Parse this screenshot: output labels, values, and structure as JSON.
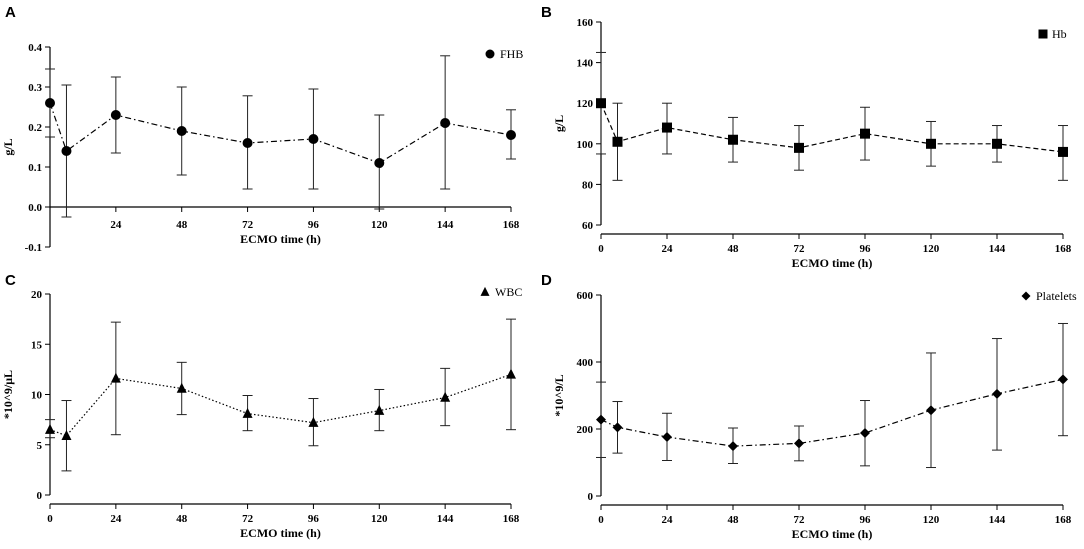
{
  "chart_data": [
    {
      "panel": "A",
      "type": "line",
      "title": "",
      "xlabel": "ECMO time (h)",
      "ylabel": "g/L",
      "legend": "FHB",
      "marker": "circle",
      "line_style": "dash-dot",
      "legend_position": "top-right",
      "xlim": [
        0,
        168
      ],
      "ylim": [
        -0.1,
        0.4
      ],
      "xticks": [
        "24",
        "48",
        "72",
        "96",
        "120",
        "144",
        "168"
      ],
      "yticks": [
        "-0.1",
        "0.0",
        "0.1",
        "0.2",
        "0.3",
        "0.4"
      ],
      "x": [
        0,
        6,
        24,
        48,
        72,
        96,
        120,
        144,
        168
      ],
      "y": [
        0.26,
        0.14,
        0.23,
        0.19,
        0.16,
        0.17,
        0.11,
        0.21,
        0.18
      ],
      "err_low": [
        0.175,
        -0.025,
        0.135,
        0.08,
        0.045,
        0.045,
        -0.005,
        0.045,
        0.12
      ],
      "err_high": [
        0.345,
        0.305,
        0.325,
        0.3,
        0.278,
        0.295,
        0.23,
        0.378,
        0.243
      ]
    },
    {
      "panel": "B",
      "type": "line",
      "title": "",
      "xlabel": "ECMO time (h)",
      "ylabel": "g/L",
      "legend": "Hb",
      "marker": "square",
      "line_style": "dashed",
      "legend_position": "top-right",
      "xlim": [
        0,
        168
      ],
      "ylim": [
        60,
        160
      ],
      "xticks": [
        "0",
        "24",
        "48",
        "72",
        "96",
        "120",
        "144",
        "168"
      ],
      "yticks": [
        "60",
        "80",
        "100",
        "120",
        "140",
        "160"
      ],
      "x": [
        0,
        6,
        24,
        48,
        72,
        96,
        120,
        144,
        168
      ],
      "y": [
        120,
        101,
        108,
        102,
        98,
        105,
        100,
        100,
        96
      ],
      "err_low": [
        95,
        82,
        95,
        91,
        87,
        92,
        89,
        91,
        82
      ],
      "err_high": [
        145,
        120,
        120,
        113,
        109,
        118,
        111,
        109,
        109
      ]
    },
    {
      "panel": "C",
      "type": "line",
      "title": "",
      "xlabel": "ECMO time (h)",
      "ylabel": "*10^9/μL",
      "legend": "WBC",
      "marker": "triangle",
      "line_style": "dotted",
      "legend_position": "top-right",
      "xlim": [
        0,
        168
      ],
      "ylim": [
        0,
        20
      ],
      "xticks": [
        "0",
        "24",
        "48",
        "72",
        "96",
        "120",
        "144",
        "168"
      ],
      "yticks": [
        "0",
        "5",
        "10",
        "15",
        "20"
      ],
      "x": [
        0,
        6,
        24,
        48,
        72,
        96,
        120,
        144,
        168
      ],
      "y": [
        6.5,
        5.9,
        11.6,
        10.6,
        8.1,
        7.2,
        8.4,
        9.7,
        12.0
      ],
      "err_low": [
        5.7,
        2.4,
        6.0,
        8.0,
        6.4,
        4.9,
        6.4,
        6.9,
        6.5
      ],
      "err_high": [
        7.5,
        9.4,
        17.2,
        13.2,
        9.9,
        9.6,
        10.5,
        12.6,
        17.5
      ]
    },
    {
      "panel": "D",
      "type": "line",
      "title": "",
      "xlabel": "ECMO time (h)",
      "ylabel": "*10^9/L",
      "legend": "Platelets",
      "marker": "diamond",
      "line_style": "dash-dot",
      "legend_position": "top-right",
      "xlim": [
        0,
        168
      ],
      "ylim": [
        0,
        600
      ],
      "xticks": [
        "0",
        "24",
        "48",
        "72",
        "96",
        "120",
        "144",
        "168"
      ],
      "yticks": [
        "0",
        "200",
        "400",
        "600"
      ],
      "x": [
        0,
        6,
        24,
        48,
        72,
        96,
        120,
        144,
        168
      ],
      "y": [
        228,
        205,
        176,
        149,
        157,
        188,
        256,
        305,
        348
      ],
      "err_low": [
        115,
        128,
        106,
        97,
        105,
        90,
        85,
        137,
        180
      ],
      "err_high": [
        340,
        282,
        247,
        203,
        209,
        285,
        427,
        470,
        515
      ]
    }
  ]
}
